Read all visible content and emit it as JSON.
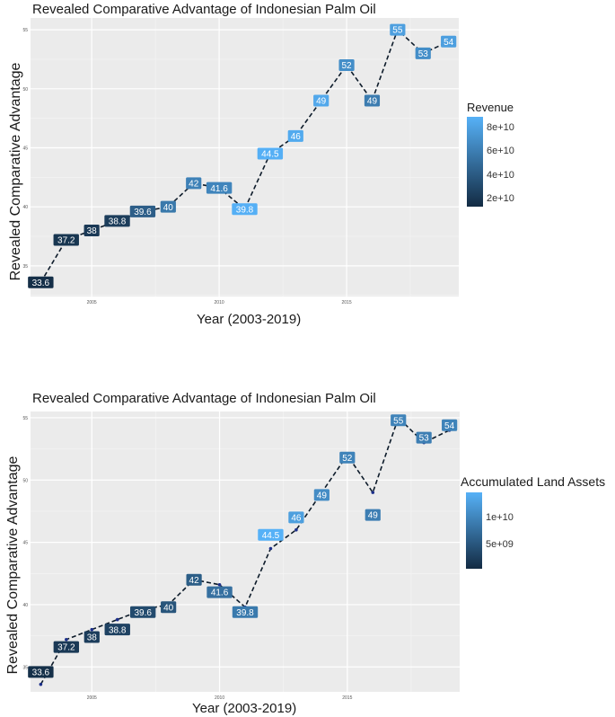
{
  "chart_data": [
    {
      "type": "line",
      "title": "Revealed Comparative Advantage of Indonesian Palm Oil",
      "xlabel": "Year (2003-2019)",
      "ylabel": "Revealed Comparative Advantage",
      "x": [
        2003,
        2004,
        2005,
        2006,
        2007,
        2008,
        2009,
        2010,
        2011,
        2012,
        2013,
        2014,
        2015,
        2016,
        2017,
        2018,
        2019
      ],
      "values": [
        33.6,
        37.2,
        38,
        38.8,
        39.6,
        40,
        42,
        41.6,
        39.8,
        44.5,
        46,
        49,
        52,
        49,
        55,
        53,
        54
      ],
      "point_labels": [
        "33.6",
        "37.2",
        "38",
        "38.8",
        "39.6",
        "40",
        "42",
        "41.6",
        "39.8",
        "44.5",
        "46",
        "49",
        "52",
        "49",
        "55",
        "53",
        "54"
      ],
      "label_values": [
        33.6,
        37.2,
        38,
        38.8,
        39.6,
        40,
        42,
        41.6,
        39.8,
        44.5,
        46,
        49,
        52,
        49,
        55,
        53,
        54
      ],
      "color_values": [
        16000000000.0,
        20000000000.0,
        22000000000.0,
        24000000000.0,
        43000000000.0,
        58000000000.0,
        63000000000.0,
        65000000000.0,
        89000000000.0,
        89000000000.0,
        86000000000.0,
        85000000000.0,
        70000000000.0,
        60000000000.0,
        80000000000.0,
        70000000000.0,
        80000000000.0
      ],
      "x_ticks": [
        "2005",
        "2010",
        "2015"
      ],
      "x_tick_values": [
        2005,
        2010,
        2015
      ],
      "y_ticks": [
        "35",
        "40",
        "45",
        "50",
        "55"
      ],
      "y_tick_values": [
        35,
        40,
        45,
        50,
        55
      ],
      "xlim": [
        2002.6,
        2019.4
      ],
      "ylim": [
        32.4,
        56.0
      ],
      "legend": {
        "title": "Revenue",
        "ticks": [
          "8e+10",
          "6e+10",
          "4e+10",
          "2e+10"
        ],
        "tick_values": [
          80000000000.0,
          60000000000.0,
          40000000000.0,
          20000000000.0
        ],
        "range": [
          14000000000.0,
          90000000000.0
        ],
        "position": "right"
      },
      "low_color": "#132b43",
      "high_color": "#56b1f7",
      "line_color": "#0d1b2a"
    },
    {
      "type": "line",
      "title": "Revealed Comparative Advantage of Indonesian Palm Oil",
      "xlabel": "Year (2003-2019)",
      "ylabel": "Revealed Comparative Advantage",
      "x": [
        2003,
        2004,
        2005,
        2006,
        2007,
        2008,
        2009,
        2010,
        2011,
        2012,
        2013,
        2014,
        2015,
        2016,
        2017,
        2018,
        2019
      ],
      "values": [
        33.6,
        37.2,
        38,
        38.8,
        39.6,
        40,
        42,
        41.6,
        39.8,
        44.5,
        46,
        49,
        52,
        49,
        55,
        53,
        54
      ],
      "point_labels": [
        "33.6",
        "37.2",
        "38",
        "38.8",
        "39.6",
        "40",
        "42",
        "41.6",
        "39.8",
        "44.5",
        "46",
        "49",
        "52",
        "49",
        "55",
        "53",
        "54"
      ],
      "label_values": [
        34.6,
        36.6,
        37.4,
        38.0,
        39.4,
        39.8,
        42.0,
        41.0,
        39.4,
        45.6,
        47.0,
        48.8,
        51.8,
        47.2,
        54.8,
        53.4,
        54.4
      ],
      "color_values": [
        1000000000.0,
        2000000000.0,
        2500000000.0,
        3000000000.0,
        4000000000.0,
        5000000000.0,
        6000000000.0,
        8000000000.0,
        9000000000.0,
        15000000000.0,
        13000000000.0,
        11000000000.0,
        10000000000.0,
        9500000000.0,
        10000000000.0,
        9500000000.0,
        10000000000.0
      ],
      "x_ticks": [
        "2005",
        "2010",
        "2015"
      ],
      "x_tick_values": [
        2005,
        2010,
        2015
      ],
      "y_ticks": [
        "35",
        "40",
        "45",
        "50",
        "55"
      ],
      "y_tick_values": [
        35,
        40,
        45,
        50,
        55
      ],
      "xlim": [
        2002.6,
        2019.4
      ],
      "ylim": [
        33.0,
        55.5
      ],
      "legend": {
        "title": "Accumulated Land Assets",
        "ticks": [
          "1e+10",
          "5e+09"
        ],
        "tick_values": [
          10000000000.0,
          5000000000.0
        ],
        "range": [
          500000000.0,
          15000000000.0
        ],
        "position": "right"
      },
      "low_color": "#132b43",
      "high_color": "#56b1f7",
      "line_color": "#0d1b2a"
    }
  ]
}
